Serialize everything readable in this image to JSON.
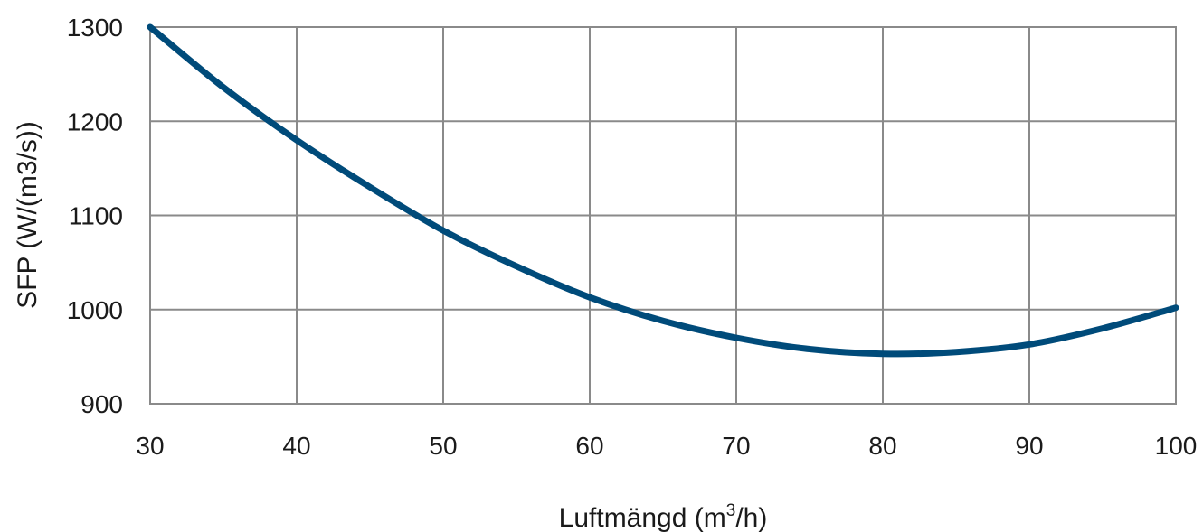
{
  "chart_data": {
    "type": "line",
    "title": "",
    "xlabel": "Luftmängd (m",
    "xlabel_sup": "3",
    "xlabel_suffix": "/h)",
    "ylabel": "SFP (W/(m3/s))",
    "xlim": [
      30,
      100
    ],
    "ylim": [
      900,
      1300
    ],
    "x_ticks": [
      30,
      40,
      50,
      60,
      70,
      80,
      90,
      100
    ],
    "y_ticks": [
      900,
      1000,
      1100,
      1200,
      1300
    ],
    "grid": true,
    "line_color": "#004b7a",
    "series": [
      {
        "x": [
          30,
          35,
          40,
          45,
          50,
          55,
          60,
          65,
          70,
          75,
          80,
          85,
          90,
          95,
          100
        ],
        "y": [
          1300,
          1236,
          1180,
          1130,
          1084,
          1046,
          1013,
          988,
          970,
          958,
          953,
          955,
          963,
          980,
          1002
        ]
      }
    ]
  }
}
